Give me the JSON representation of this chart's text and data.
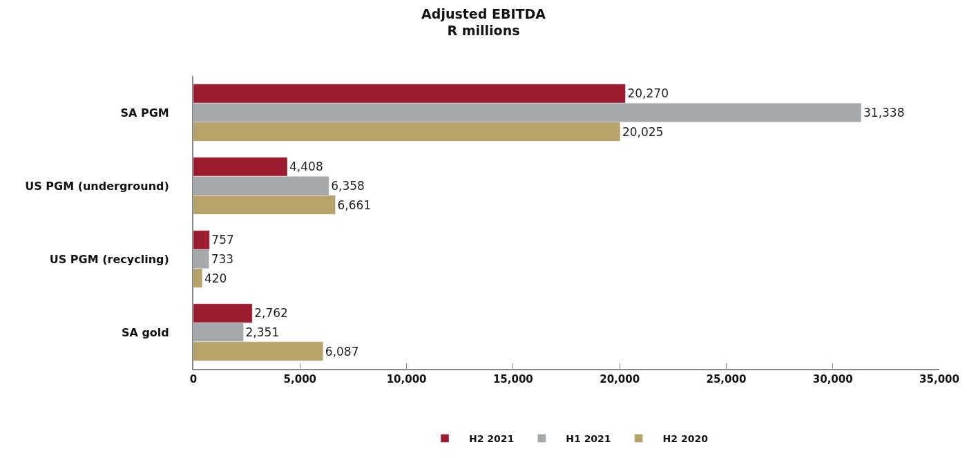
{
  "chart_data": {
    "type": "bar",
    "orientation": "horizontal",
    "title": "Adjusted EBITDA",
    "subtitle": "R millions",
    "categories": [
      "SA PGM",
      "US PGM (underground)",
      "US PGM (recycling)",
      "SA gold"
    ],
    "series": [
      {
        "name": "H2 2021",
        "color": "#9b1c2e",
        "values": [
          20270,
          4408,
          757,
          2762
        ],
        "value_labels": [
          "20,270",
          "4,408",
          "757",
          "2,762"
        ]
      },
      {
        "name": "H1 2021",
        "color": "#a5a9ab",
        "values": [
          31338,
          6358,
          733,
          2351
        ],
        "value_labels": [
          "31,338",
          "6,358",
          "733",
          "2,351"
        ]
      },
      {
        "name": "H2 2020",
        "color": "#b8a369",
        "values": [
          20025,
          6661,
          420,
          6087
        ],
        "value_labels": [
          "20,025",
          "6,661",
          "420",
          "6,087"
        ]
      }
    ],
    "xlim": [
      0,
      35000
    ],
    "xticks": [
      {
        "value": 0,
        "label": "0"
      },
      {
        "value": 5000,
        "label": "5,000"
      },
      {
        "value": 10000,
        "label": "10,000"
      },
      {
        "value": 15000,
        "label": "15,000"
      },
      {
        "value": 20000,
        "label": "20,000"
      },
      {
        "value": 25000,
        "label": "25,000"
      },
      {
        "value": 30000,
        "label": "30,000"
      },
      {
        "value": 35000,
        "label": "35,000"
      }
    ],
    "legend": "bottom"
  }
}
